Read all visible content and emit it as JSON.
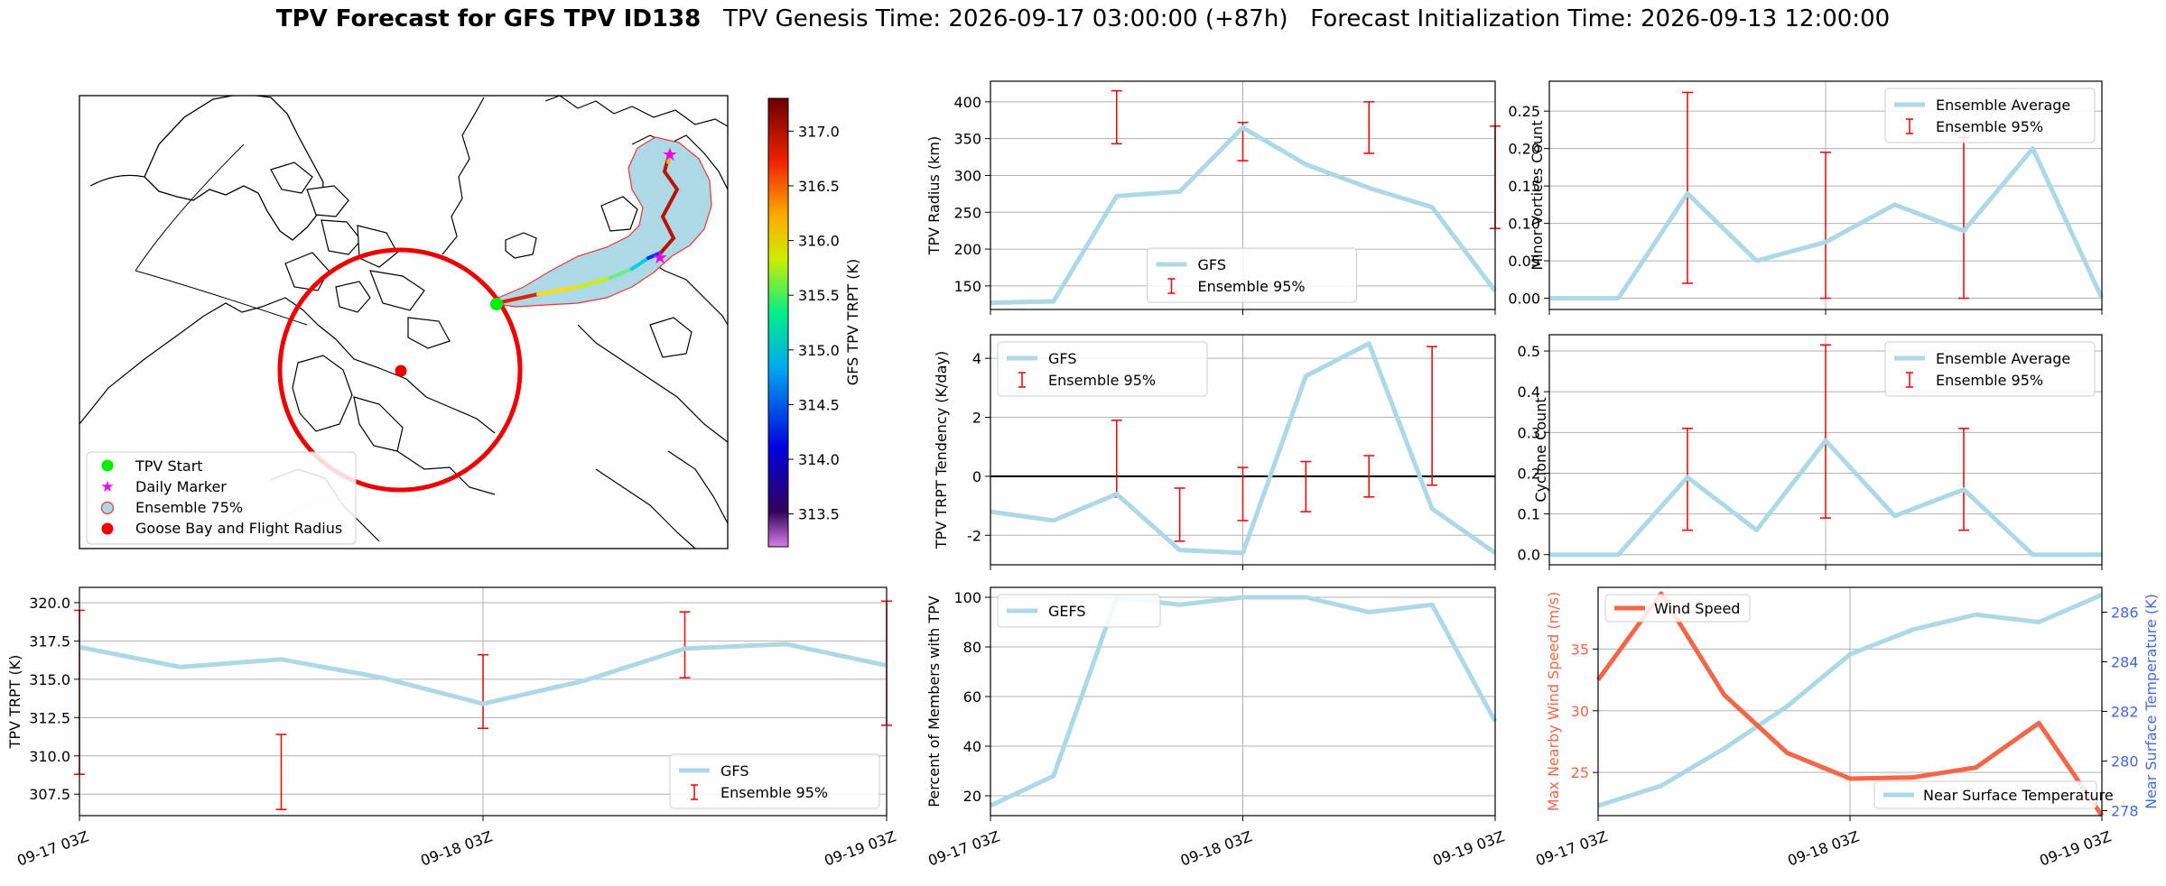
{
  "header": {
    "title": "TPV Forecast for GFS TPV ID138",
    "genesis": "TPV Genesis Time: 2026-09-17 03:00:00 (+87h)",
    "init": "Forecast Initialization Time: 2026-09-13 12:00:00"
  },
  "map": {
    "legend": [
      "TPV Start",
      "Daily Marker",
      "Ensemble 75%",
      "Goose Bay and Flight Radius"
    ],
    "colorbar": {
      "label": "GFS TPV TRPT (K)",
      "min": 313.2,
      "max": 317.3,
      "ticks": [
        "313.5",
        "314.0",
        "314.5",
        "315.0",
        "315.5",
        "316.0",
        "316.5",
        "317.0"
      ]
    },
    "colors": {
      "start": "#00ee00",
      "daily": "#ee00ee",
      "goose": "#ee0000",
      "ensemble_fill": "#add8e6"
    }
  },
  "time_ticks": [
    "09-17 03Z",
    "09-18 03Z",
    "09-19 03Z"
  ],
  "chart_data": [
    {
      "id": "trpt",
      "type": "line",
      "ylabel": "TPV TRPT (K)",
      "ylim": [
        306.1,
        321.0
      ],
      "yticks": [
        307.5,
        310.0,
        312.5,
        315.0,
        317.5,
        320.0
      ],
      "x_hours": [
        0,
        6,
        12,
        18,
        24,
        30,
        36,
        42,
        48
      ],
      "series": [
        {
          "name": "GFS",
          "values": [
            317.1,
            315.8,
            316.3,
            315.1,
            313.4,
            314.9,
            317.0,
            317.3,
            315.9
          ]
        }
      ],
      "errorbars": {
        "name": "Ensemble 95%",
        "x_hours": [
          0,
          12,
          24,
          36,
          48
        ],
        "low": [
          308.8,
          306.5,
          311.8,
          315.1,
          312.0
        ],
        "high": [
          319.5,
          311.4,
          316.6,
          319.4,
          320.1
        ]
      },
      "legend": "lower right"
    },
    {
      "id": "radius",
      "type": "line",
      "ylabel": "TPV Radius (km)",
      "ylim": [
        118,
        428
      ],
      "yticks": [
        150,
        200,
        250,
        300,
        350,
        400
      ],
      "x_hours": [
        0,
        6,
        12,
        18,
        24,
        30,
        36,
        42,
        48
      ],
      "series": [
        {
          "name": "GFS",
          "values": [
            127,
            129,
            272,
            278,
            365,
            315,
            283,
            257,
            143
          ]
        }
      ],
      "errorbars": {
        "name": "Ensemble 95%",
        "x_hours": [
          12,
          24,
          36,
          48
        ],
        "low": [
          343,
          320,
          330,
          228
        ],
        "high": [
          415,
          372,
          400,
          367
        ]
      },
      "legend": "lower center"
    },
    {
      "id": "tendency",
      "type": "line",
      "ylabel": "TPV TRPT Tendency (K/day)",
      "ylim": [
        -3.0,
        4.8
      ],
      "yticks": [
        -2,
        0,
        2,
        4
      ],
      "zero_line": true,
      "x_hours": [
        0,
        6,
        12,
        18,
        24,
        30,
        36,
        42,
        48
      ],
      "series": [
        {
          "name": "GFS",
          "values": [
            -1.2,
            -1.5,
            -0.6,
            -2.5,
            -2.6,
            3.4,
            4.5,
            -1.1,
            -2.6
          ]
        }
      ],
      "errorbars": {
        "name": "Ensemble 95%",
        "x_hours": [
          12,
          18,
          24,
          30,
          36,
          42
        ],
        "low": [
          -0.7,
          -2.2,
          -1.5,
          -1.2,
          -0.7,
          -0.3
        ],
        "high": [
          1.9,
          -0.4,
          0.3,
          0.5,
          0.7,
          4.4
        ]
      },
      "legend": "upper left"
    },
    {
      "id": "percent",
      "type": "line",
      "ylabel": "Percent of Members with TPV",
      "ylim": [
        12,
        104
      ],
      "yticks": [
        20,
        40,
        60,
        80,
        100
      ],
      "x_hours": [
        0,
        6,
        12,
        18,
        24,
        30,
        36,
        42,
        48
      ],
      "series": [
        {
          "name": "GEFS",
          "values": [
            16,
            28,
            100,
            97,
            100,
            100,
            94,
            97,
            50
          ]
        }
      ],
      "legend": "upper left"
    },
    {
      "id": "minor",
      "type": "line",
      "ylabel": "Minor Vortices Count",
      "ylim": [
        -0.015,
        0.29
      ],
      "yticks": [
        0.0,
        0.05,
        0.1,
        0.15,
        0.2,
        0.25
      ],
      "x_hours": [
        0,
        6,
        12,
        18,
        24,
        30,
        36,
        42,
        48
      ],
      "series": [
        {
          "name": "Ensemble Average",
          "values": [
            0.0,
            0.0,
            0.14,
            0.05,
            0.075,
            0.125,
            0.09,
            0.2,
            0.0
          ]
        }
      ],
      "errorbars": {
        "name": "Ensemble 95%",
        "x_hours": [
          12,
          24,
          36
        ],
        "low": [
          0.02,
          0.0,
          0.0
        ],
        "high": [
          0.275,
          0.195,
          0.215
        ]
      },
      "legend": "upper right"
    },
    {
      "id": "cyclone",
      "type": "line",
      "ylabel": "Cyclone Count",
      "ylim": [
        -0.025,
        0.54
      ],
      "yticks": [
        0.0,
        0.1,
        0.2,
        0.3,
        0.4,
        0.5
      ],
      "x_hours": [
        0,
        6,
        12,
        18,
        24,
        30,
        36,
        42,
        48
      ],
      "series": [
        {
          "name": "Ensemble Average",
          "values": [
            0.0,
            0.0,
            0.19,
            0.06,
            0.28,
            0.095,
            0.16,
            0.0,
            0.0
          ]
        }
      ],
      "errorbars": {
        "name": "Ensemble 95%",
        "x_hours": [
          12,
          24,
          36
        ],
        "low": [
          0.06,
          0.09,
          0.06
        ],
        "high": [
          0.31,
          0.515,
          0.31
        ]
      },
      "legend": "upper right"
    },
    {
      "id": "wind",
      "type": "line",
      "ylabel": "Max Nearby Wind Speed (m/s)",
      "ylabel_right": "Near Surface Temperature (K)",
      "ylim": [
        21.5,
        40.0
      ],
      "yticks": [
        25,
        30,
        35
      ],
      "ylim_right": [
        277.8,
        287.0
      ],
      "yticks_right": [
        278,
        280,
        282,
        284,
        286
      ],
      "x_hours": [
        0,
        6,
        12,
        18,
        24,
        30,
        36,
        42,
        48
      ],
      "series": [
        {
          "name": "Wind Speed",
          "axis": "left",
          "values": [
            32.5,
            39.5,
            31.3,
            26.6,
            24.5,
            24.6,
            25.4,
            29.0,
            21.5
          ]
        },
        {
          "name": "Near Surface Temperature",
          "axis": "right",
          "values": [
            278.2,
            279.0,
            280.5,
            282.2,
            284.3,
            285.3,
            285.9,
            285.6,
            286.7
          ]
        }
      ],
      "colors": {
        "wind": "#f4664a",
        "temp": "#add8e6",
        "right_axis": "#4169e1"
      }
    }
  ]
}
